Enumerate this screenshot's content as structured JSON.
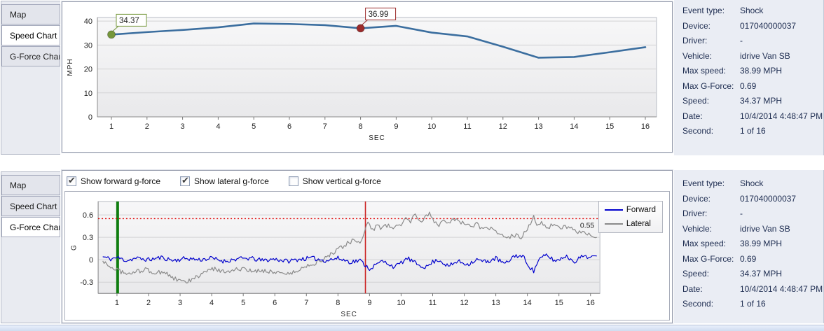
{
  "tabs": {
    "items": [
      "Map",
      "Speed Chart",
      "G-Force Chart"
    ]
  },
  "speed_panel": {
    "selected_tab": "Speed Chart"
  },
  "gforce_panel": {
    "selected_tab": "G-Force Chart",
    "checkboxes": [
      {
        "label": "Show forward g-force",
        "checked": true
      },
      {
        "label": "Show lateral g-force",
        "checked": true
      },
      {
        "label": "Show vertical g-force",
        "checked": false
      }
    ]
  },
  "details": {
    "rows": [
      {
        "label": "Event type:",
        "value": "Shock"
      },
      {
        "label": "Device:",
        "value": "017040000037"
      },
      {
        "label": "Driver:",
        "value": "-"
      },
      {
        "label": "Vehicle:",
        "value": "idrive Van SB"
      },
      {
        "label": "Max speed:",
        "value": "38.99 MPH"
      },
      {
        "label": "Max G-Force:",
        "value": "0.69"
      },
      {
        "label": "Speed:",
        "value": "34.37 MPH"
      },
      {
        "label": "Date:",
        "value": "10/4/2014 4:48:47 PM"
      },
      {
        "label": "Second:",
        "value": "1 of 16"
      }
    ]
  },
  "chart_data": [
    {
      "id": "speed",
      "type": "line",
      "title": "",
      "xlabel": "SEC",
      "ylabel": "MPH",
      "x": [
        1,
        2,
        3,
        4,
        5,
        6,
        7,
        8,
        9,
        10,
        11,
        12,
        13,
        14,
        15,
        16
      ],
      "values": [
        34.37,
        35.4,
        36.3,
        37.4,
        38.99,
        38.8,
        38.3,
        36.99,
        38.0,
        35.2,
        33.6,
        29.3,
        24.7,
        25.0,
        27.0,
        29.1
      ],
      "ylim": [
        0,
        41.5
      ],
      "yticks": [
        0,
        10,
        20,
        30,
        40
      ],
      "xticks": [
        1,
        2,
        3,
        4,
        5,
        6,
        7,
        8,
        9,
        10,
        11,
        12,
        13,
        14,
        15,
        16
      ],
      "grid": true,
      "line_color": "#3b6e9f",
      "markers": [
        {
          "x": 1,
          "y": 34.37,
          "label": "34.37",
          "color": "#76973b",
          "text_color": "#5d7a2a"
        },
        {
          "x": 8,
          "y": 36.99,
          "label": "36.99",
          "color": "#9c2b2b",
          "text_color": "#8a2424"
        }
      ]
    },
    {
      "id": "gforce",
      "type": "line",
      "title": "",
      "xlabel": "SEC",
      "ylabel": "G",
      "xlim": [
        0.55,
        16.45
      ],
      "ylim": [
        -0.45,
        0.78
      ],
      "yticks": [
        -0.3,
        0,
        0.3,
        0.6
      ],
      "xticks": [
        1,
        2,
        3,
        4,
        5,
        6,
        7,
        8,
        9,
        10,
        11,
        12,
        13,
        14,
        15,
        16
      ],
      "grid": true,
      "legend_position": "right",
      "threshold": {
        "y": 0.55,
        "label": "0.55",
        "color": "#e00000"
      },
      "event_lines": [
        {
          "name": "event-start-line",
          "x": 1.02,
          "color": "#0f7d0f",
          "width": 4
        },
        {
          "name": "shock-moment-line",
          "x": 8.87,
          "color": "#cc2222",
          "width": 1.6
        }
      ],
      "noise_amplitude": 0.03,
      "series": [
        {
          "name": "Forward",
          "color": "#0000cd",
          "points": [
            [
              0.55,
              0.04
            ],
            [
              0.8,
              0.01
            ],
            [
              1.0,
              0.03
            ],
            [
              1.3,
              -0.01
            ],
            [
              1.6,
              0.02
            ],
            [
              2.0,
              0.0
            ],
            [
              2.4,
              0.03
            ],
            [
              2.8,
              -0.01
            ],
            [
              3.2,
              0.02
            ],
            [
              3.6,
              0.0
            ],
            [
              4.0,
              0.02
            ],
            [
              4.4,
              -0.02
            ],
            [
              4.8,
              0.01
            ],
            [
              5.2,
              0.02
            ],
            [
              5.6,
              -0.01
            ],
            [
              6.0,
              0.01
            ],
            [
              6.4,
              -0.02
            ],
            [
              6.8,
              0.01
            ],
            [
              7.2,
              0.02
            ],
            [
              7.6,
              -0.01
            ],
            [
              8.0,
              0.02
            ],
            [
              8.4,
              -0.03
            ],
            [
              8.7,
              -0.01
            ],
            [
              9.0,
              -0.12
            ],
            [
              9.2,
              -0.07
            ],
            [
              9.4,
              -0.02
            ],
            [
              9.6,
              -0.05
            ],
            [
              9.8,
              -0.1
            ],
            [
              10.0,
              -0.04
            ],
            [
              10.2,
              0.02
            ],
            [
              10.5,
              -0.06
            ],
            [
              10.8,
              -0.1
            ],
            [
              11.0,
              -0.03
            ],
            [
              11.2,
              0.0
            ],
            [
              11.5,
              -0.09
            ],
            [
              11.8,
              -0.02
            ],
            [
              12.1,
              -0.06
            ],
            [
              12.4,
              0.0
            ],
            [
              12.7,
              -0.03
            ],
            [
              13.0,
              0.02
            ],
            [
              13.3,
              -0.06
            ],
            [
              13.6,
              0.06
            ],
            [
              13.9,
              0.03
            ],
            [
              14.05,
              -0.08
            ],
            [
              14.2,
              -0.16
            ],
            [
              14.35,
              0.0
            ],
            [
              14.6,
              0.06
            ],
            [
              14.9,
              -0.02
            ],
            [
              15.2,
              0.05
            ],
            [
              15.5,
              -0.02
            ],
            [
              15.8,
              0.06
            ],
            [
              16.0,
              0.03
            ],
            [
              16.2,
              0.05
            ]
          ]
        },
        {
          "name": "Lateral",
          "color": "#8a8a8a",
          "points": [
            [
              0.55,
              -0.02
            ],
            [
              0.8,
              -0.1
            ],
            [
              1.0,
              -0.13
            ],
            [
              1.3,
              -0.2
            ],
            [
              1.6,
              -0.16
            ],
            [
              1.9,
              -0.13
            ],
            [
              2.2,
              -0.18
            ],
            [
              2.5,
              -0.16
            ],
            [
              2.8,
              -0.25
            ],
            [
              3.0,
              -0.29
            ],
            [
              3.2,
              -0.3
            ],
            [
              3.5,
              -0.24
            ],
            [
              3.8,
              -0.16
            ],
            [
              4.1,
              -0.12
            ],
            [
              4.4,
              -0.16
            ],
            [
              4.7,
              -0.13
            ],
            [
              5.0,
              -0.13
            ],
            [
              5.3,
              -0.16
            ],
            [
              5.6,
              -0.14
            ],
            [
              5.9,
              -0.16
            ],
            [
              6.2,
              -0.17
            ],
            [
              6.5,
              -0.19
            ],
            [
              6.8,
              -0.13
            ],
            [
              7.0,
              -0.08
            ],
            [
              7.3,
              -0.04
            ],
            [
              7.6,
              0.02
            ],
            [
              7.9,
              0.1
            ],
            [
              8.1,
              0.16
            ],
            [
              8.3,
              0.22
            ],
            [
              8.5,
              0.26
            ],
            [
              8.65,
              0.22
            ],
            [
              8.8,
              0.3
            ],
            [
              8.95,
              0.5
            ],
            [
              9.1,
              0.4
            ],
            [
              9.25,
              0.46
            ],
            [
              9.4,
              0.42
            ],
            [
              9.55,
              0.46
            ],
            [
              9.7,
              0.43
            ],
            [
              9.85,
              0.46
            ],
            [
              10.0,
              0.44
            ],
            [
              10.15,
              0.58
            ],
            [
              10.3,
              0.52
            ],
            [
              10.45,
              0.6
            ],
            [
              10.6,
              0.5
            ],
            [
              10.75,
              0.56
            ],
            [
              10.9,
              0.62
            ],
            [
              11.05,
              0.5
            ],
            [
              11.2,
              0.47
            ],
            [
              11.35,
              0.55
            ],
            [
              11.5,
              0.5
            ],
            [
              11.65,
              0.55
            ],
            [
              11.8,
              0.52
            ],
            [
              12.0,
              0.48
            ],
            [
              12.2,
              0.45
            ],
            [
              12.4,
              0.48
            ],
            [
              12.6,
              0.4
            ],
            [
              12.8,
              0.42
            ],
            [
              13.0,
              0.38
            ],
            [
              13.2,
              0.32
            ],
            [
              13.4,
              0.3
            ],
            [
              13.6,
              0.33
            ],
            [
              13.8,
              0.3
            ],
            [
              13.95,
              0.38
            ],
            [
              14.1,
              0.5
            ],
            [
              14.2,
              0.57
            ],
            [
              14.3,
              0.45
            ],
            [
              14.45,
              0.5
            ],
            [
              14.6,
              0.43
            ],
            [
              14.8,
              0.46
            ],
            [
              15.0,
              0.42
            ],
            [
              15.2,
              0.45
            ],
            [
              15.4,
              0.42
            ],
            [
              15.6,
              0.38
            ],
            [
              15.8,
              0.35
            ],
            [
              16.0,
              0.33
            ],
            [
              16.1,
              0.28
            ],
            [
              16.2,
              0.3
            ]
          ]
        }
      ]
    }
  ]
}
